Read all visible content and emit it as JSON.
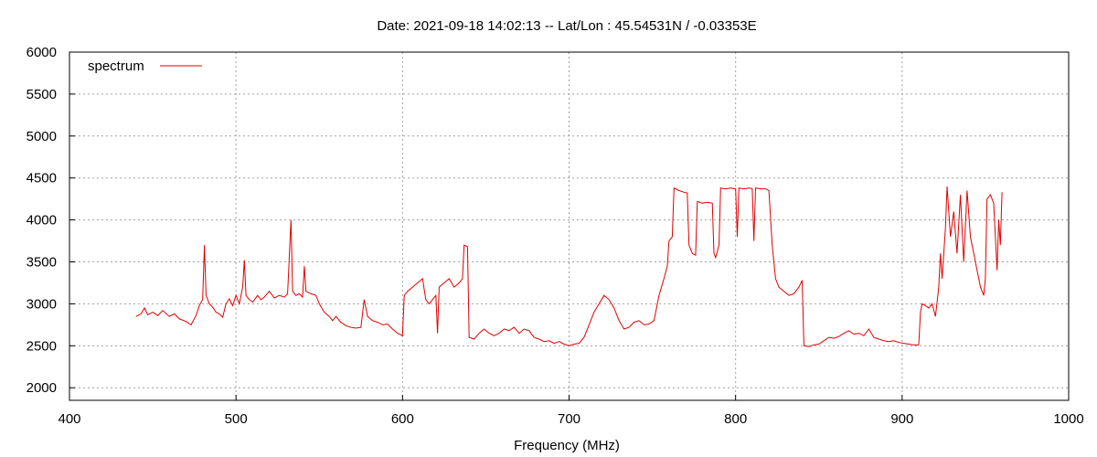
{
  "chart_data": {
    "type": "line",
    "title": "Date: 2021-09-18 14:02:13  --  Lat/Lon : 45.54531N / -0.03353E",
    "xlabel": "Frequency (MHz)",
    "ylabel": "",
    "xlim": [
      400,
      1000
    ],
    "ylim": [
      1800,
      6000
    ],
    "x_ticks": [
      "400",
      "500",
      "600",
      "700",
      "800",
      "900",
      "1000"
    ],
    "y_ticks": [
      "2000",
      "2500",
      "3000",
      "3500",
      "4000",
      "4500",
      "5000",
      "5500",
      "6000"
    ],
    "grid": true,
    "legend_position": "top-left",
    "series": [
      {
        "name": "spectrum",
        "color": "#e00000",
        "points": [
          [
            440,
            2850
          ],
          [
            443,
            2880
          ],
          [
            445,
            2950
          ],
          [
            447,
            2870
          ],
          [
            450,
            2900
          ],
          [
            453,
            2860
          ],
          [
            456,
            2920
          ],
          [
            460,
            2850
          ],
          [
            463,
            2880
          ],
          [
            466,
            2820
          ],
          [
            470,
            2790
          ],
          [
            473,
            2750
          ],
          [
            476,
            2860
          ],
          [
            478,
            2980
          ],
          [
            480,
            3050
          ],
          [
            481,
            3700
          ],
          [
            482,
            3100
          ],
          [
            484,
            3000
          ],
          [
            486,
            2960
          ],
          [
            488,
            2900
          ],
          [
            490,
            2880
          ],
          [
            492,
            2840
          ],
          [
            494,
            3000
          ],
          [
            496,
            3060
          ],
          [
            498,
            2980
          ],
          [
            500,
            3100
          ],
          [
            502,
            3000
          ],
          [
            504,
            3200
          ],
          [
            505,
            3520
          ],
          [
            506,
            3100
          ],
          [
            508,
            3050
          ],
          [
            510,
            3020
          ],
          [
            513,
            3100
          ],
          [
            515,
            3050
          ],
          [
            517,
            3080
          ],
          [
            520,
            3150
          ],
          [
            523,
            3070
          ],
          [
            526,
            3100
          ],
          [
            529,
            3080
          ],
          [
            531,
            3120
          ],
          [
            533,
            4000
          ],
          [
            534,
            3150
          ],
          [
            536,
            3100
          ],
          [
            538,
            3120
          ],
          [
            540,
            3080
          ],
          [
            541,
            3450
          ],
          [
            542,
            3150
          ],
          [
            545,
            3120
          ],
          [
            548,
            3100
          ],
          [
            550,
            3000
          ],
          [
            553,
            2900
          ],
          [
            556,
            2850
          ],
          [
            558,
            2800
          ],
          [
            560,
            2850
          ],
          [
            563,
            2780
          ],
          [
            566,
            2740
          ],
          [
            569,
            2720
          ],
          [
            572,
            2710
          ],
          [
            575,
            2720
          ],
          [
            577,
            3050
          ],
          [
            579,
            2850
          ],
          [
            582,
            2800
          ],
          [
            585,
            2780
          ],
          [
            588,
            2750
          ],
          [
            591,
            2760
          ],
          [
            594,
            2700
          ],
          [
            597,
            2650
          ],
          [
            600,
            2620
          ],
          [
            601,
            3100
          ],
          [
            603,
            3150
          ],
          [
            606,
            3200
          ],
          [
            609,
            3250
          ],
          [
            612,
            3300
          ],
          [
            614,
            3050
          ],
          [
            616,
            3000
          ],
          [
            618,
            3050
          ],
          [
            620,
            3100
          ],
          [
            621,
            2650
          ],
          [
            622,
            3200
          ],
          [
            625,
            3250
          ],
          [
            628,
            3300
          ],
          [
            631,
            3200
          ],
          [
            634,
            3250
          ],
          [
            636,
            3300
          ],
          [
            637,
            3700
          ],
          [
            639,
            3680
          ],
          [
            640,
            2600
          ],
          [
            643,
            2580
          ],
          [
            646,
            2650
          ],
          [
            649,
            2700
          ],
          [
            652,
            2650
          ],
          [
            655,
            2620
          ],
          [
            658,
            2650
          ],
          [
            661,
            2700
          ],
          [
            664,
            2680
          ],
          [
            667,
            2720
          ],
          [
            670,
            2650
          ],
          [
            673,
            2700
          ],
          [
            676,
            2680
          ],
          [
            679,
            2600
          ],
          [
            682,
            2580
          ],
          [
            685,
            2550
          ],
          [
            688,
            2560
          ],
          [
            691,
            2530
          ],
          [
            694,
            2550
          ],
          [
            697,
            2520
          ],
          [
            700,
            2500
          ],
          [
            703,
            2520
          ],
          [
            706,
            2530
          ],
          [
            709,
            2600
          ],
          [
            712,
            2750
          ],
          [
            715,
            2900
          ],
          [
            718,
            3000
          ],
          [
            721,
            3100
          ],
          [
            724,
            3050
          ],
          [
            727,
            2950
          ],
          [
            730,
            2800
          ],
          [
            733,
            2700
          ],
          [
            736,
            2720
          ],
          [
            739,
            2780
          ],
          [
            742,
            2800
          ],
          [
            745,
            2750
          ],
          [
            748,
            2760
          ],
          [
            751,
            2800
          ],
          [
            754,
            3100
          ],
          [
            757,
            3300
          ],
          [
            759,
            3450
          ],
          [
            760,
            3750
          ],
          [
            762,
            3800
          ],
          [
            763,
            4380
          ],
          [
            766,
            4350
          ],
          [
            769,
            4330
          ],
          [
            771,
            4320
          ],
          [
            772,
            3700
          ],
          [
            774,
            3600
          ],
          [
            776,
            3580
          ],
          [
            777,
            4220
          ],
          [
            780,
            4200
          ],
          [
            783,
            4210
          ],
          [
            786,
            4200
          ],
          [
            787,
            3600
          ],
          [
            788,
            3550
          ],
          [
            790,
            3700
          ],
          [
            791,
            4380
          ],
          [
            794,
            4370
          ],
          [
            797,
            4380
          ],
          [
            800,
            4370
          ],
          [
            801,
            3800
          ],
          [
            802,
            4380
          ],
          [
            805,
            4370
          ],
          [
            808,
            4380
          ],
          [
            810,
            4370
          ],
          [
            811,
            3750
          ],
          [
            812,
            4380
          ],
          [
            815,
            4370
          ],
          [
            818,
            4370
          ],
          [
            820,
            4350
          ],
          [
            822,
            3700
          ],
          [
            824,
            3300
          ],
          [
            826,
            3200
          ],
          [
            829,
            3150
          ],
          [
            832,
            3100
          ],
          [
            835,
            3120
          ],
          [
            838,
            3200
          ],
          [
            840,
            3280
          ],
          [
            841,
            2500
          ],
          [
            844,
            2490
          ],
          [
            847,
            2510
          ],
          [
            850,
            2520
          ],
          [
            853,
            2560
          ],
          [
            856,
            2600
          ],
          [
            859,
            2590
          ],
          [
            862,
            2610
          ],
          [
            865,
            2650
          ],
          [
            868,
            2680
          ],
          [
            871,
            2640
          ],
          [
            874,
            2650
          ],
          [
            877,
            2620
          ],
          [
            880,
            2700
          ],
          [
            883,
            2600
          ],
          [
            886,
            2580
          ],
          [
            889,
            2560
          ],
          [
            892,
            2550
          ],
          [
            895,
            2560
          ],
          [
            898,
            2540
          ],
          [
            901,
            2530
          ],
          [
            904,
            2520
          ],
          [
            907,
            2510
          ],
          [
            910,
            2510
          ],
          [
            911,
            2900
          ],
          [
            912,
            3000
          ],
          [
            914,
            2980
          ],
          [
            916,
            2950
          ],
          [
            918,
            3000
          ],
          [
            920,
            2850
          ],
          [
            922,
            3200
          ],
          [
            923,
            3600
          ],
          [
            924,
            3300
          ],
          [
            926,
            3900
          ],
          [
            927,
            4400
          ],
          [
            929,
            3800
          ],
          [
            931,
            4100
          ],
          [
            933,
            3600
          ],
          [
            935,
            4300
          ],
          [
            937,
            3500
          ],
          [
            939,
            4350
          ],
          [
            941,
            3800
          ],
          [
            943,
            3600
          ],
          [
            945,
            3400
          ],
          [
            947,
            3200
          ],
          [
            949,
            3100
          ],
          [
            950,
            3300
          ],
          [
            951,
            4250
          ],
          [
            953,
            4300
          ],
          [
            955,
            4200
          ],
          [
            957,
            3400
          ],
          [
            958,
            4000
          ],
          [
            959,
            3700
          ],
          [
            960,
            4330
          ]
        ]
      }
    ]
  }
}
